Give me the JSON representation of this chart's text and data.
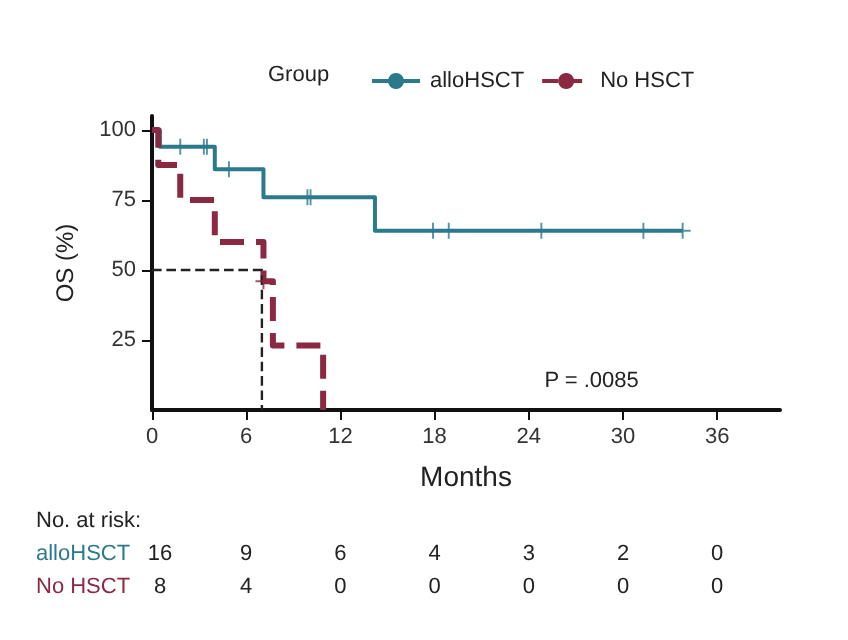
{
  "chart_data": {
    "type": "step",
    "xlabel": "Months",
    "ylabel": "OS (%)",
    "legend_title": "Group",
    "legend": "top",
    "xlim": [
      0,
      40
    ],
    "xticks": [
      0,
      6,
      12,
      18,
      24,
      30,
      36
    ],
    "ylim": [
      0,
      105
    ],
    "yticks": [
      25,
      50,
      75,
      100
    ],
    "grid": false,
    "series": [
      {
        "name": "alloHSCT",
        "color": "#2a7a8c",
        "line_style": "solid",
        "x": [
          0,
          0.5,
          4.0,
          7.1,
          14.2,
          33.8
        ],
        "values": [
          100,
          94,
          86,
          76,
          64,
          64
        ]
      },
      {
        "name": "No HSCT",
        "color": "#8b2942",
        "line_style": "dashed",
        "x": [
          0,
          0.4,
          1.8,
          4.0,
          7.1,
          7.7,
          10.9
        ],
        "values": [
          100,
          87.5,
          75,
          60,
          46,
          23,
          0
        ]
      },
      {
        "type": "scatter",
        "marker": "cross",
        "color": "#2a7a8c",
        "x": [
          1.8,
          3.3,
          3.5,
          4.9,
          9.9,
          10.1,
          17.9,
          18.9,
          24.8,
          31.3,
          33.8
        ],
        "values": [
          94,
          94,
          94,
          86,
          76,
          76,
          64,
          64,
          64,
          64,
          64
        ]
      },
      {
        "type": "scatter",
        "marker": "cross",
        "color": "#8b2942",
        "x": [
          7.1
        ],
        "values": [
          46
        ]
      },
      {
        "type": "line",
        "color": "#222222",
        "line_style": "dashed",
        "x": [
          0,
          7,
          7
        ],
        "values": [
          50,
          50,
          0
        ]
      }
    ],
    "annotations": [
      "P = .0085",
      "No. at risk:",
      "alloHSCT",
      "16",
      "9",
      "6",
      "4",
      "3",
      "2",
      "0",
      "No HSCT",
      "8",
      "4",
      "0",
      "0",
      "0",
      "0",
      "0"
    ]
  }
}
